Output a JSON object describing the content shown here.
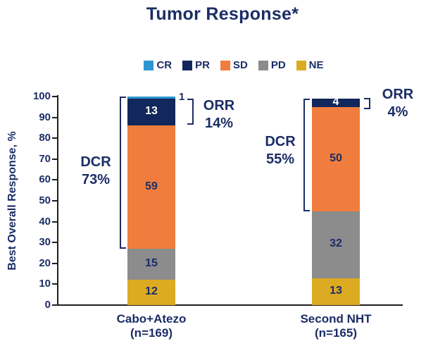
{
  "title": "Tumor Response*",
  "ylabel": "Best Overall Response, %",
  "colors": {
    "text_navy": "#1B2D66",
    "axis_line": "#1f1f1f",
    "background": "#FFFFFF",
    "cr_blue": "#2E95D0",
    "pr_navy": "#12275C",
    "sd_orange": "#F07D3D",
    "pd_gray": "#8C8C8C",
    "ne_gold": "#DDAB21"
  },
  "chart_data": {
    "type": "bar",
    "stacked": true,
    "title": "Tumor Response*",
    "ylabel": "Best Overall Response, %",
    "ylim": [
      0,
      100
    ],
    "ytick_step": 10,
    "grid": false,
    "legend_position": "top",
    "categories": [
      {
        "label": "Cabo+Atezo",
        "n_label": "(n=169)"
      },
      {
        "label": "Second NHT",
        "n_label": "(n=165)"
      }
    ],
    "series": [
      {
        "name": "CR",
        "color": "#2E95D0",
        "values": [
          1,
          0
        ],
        "label_style": "outside"
      },
      {
        "name": "PR",
        "color": "#12275C",
        "values": [
          13,
          4
        ],
        "label_style": "white"
      },
      {
        "name": "SD",
        "color": "#F07D3D",
        "values": [
          59,
          50
        ],
        "label_style": "navy"
      },
      {
        "name": "PD",
        "color": "#8C8C8C",
        "values": [
          15,
          32
        ],
        "label_style": "navy"
      },
      {
        "name": "NE",
        "color": "#DDAB21",
        "values": [
          12,
          13
        ],
        "label_style": "navy"
      }
    ],
    "stack_order_bottom_to_top": [
      "NE",
      "PD",
      "SD",
      "PR",
      "CR"
    ],
    "annotations": [
      {
        "bar": 0,
        "label": "DCR",
        "value": "73%",
        "span_from": 27,
        "span_to": 100,
        "side": "left"
      },
      {
        "bar": 0,
        "label": "ORR",
        "value": "14%",
        "span_from": 86,
        "span_to": 100,
        "side": "right"
      },
      {
        "bar": 1,
        "label": "DCR",
        "value": "55%",
        "span_from": 45,
        "span_to": 99,
        "side": "left"
      },
      {
        "bar": 1,
        "label": "ORR",
        "value": "4%",
        "span_from": 95,
        "span_to": 99,
        "side": "right"
      }
    ]
  }
}
